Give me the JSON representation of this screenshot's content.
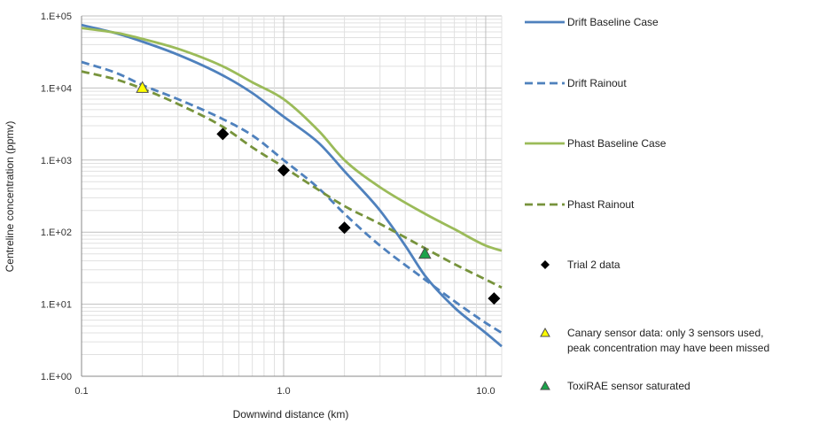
{
  "chart_data": {
    "type": "line",
    "xlabel": "Downwind distance (km)",
    "ylabel": "Centreline concentration (ppmv)",
    "xscale": "log",
    "yscale": "log",
    "xlim": [
      0.1,
      12
    ],
    "ylim": [
      1,
      100000
    ],
    "x_ticks": [
      {
        "value": 0.1,
        "label": "0.1"
      },
      {
        "value": 1,
        "label": "1.0"
      },
      {
        "value": 10,
        "label": "10.0"
      }
    ],
    "y_ticks": [
      {
        "value": 1,
        "label": "1.E+00"
      },
      {
        "value": 10,
        "label": "1.E+01"
      },
      {
        "value": 100,
        "label": "1.E+02"
      },
      {
        "value": 1000,
        "label": "1.E+03"
      },
      {
        "value": 10000,
        "label": "1.E+04"
      },
      {
        "value": 100000,
        "label": "1.E+05"
      }
    ],
    "grid": true,
    "legend_position": "right",
    "series": [
      {
        "name": "Drift Baseline Case",
        "kind": "line",
        "color": "#4f81bd",
        "dash": "solid",
        "points": [
          [
            0.1,
            75000
          ],
          [
            0.15,
            57000
          ],
          [
            0.2,
            44000
          ],
          [
            0.3,
            29000
          ],
          [
            0.5,
            15000
          ],
          [
            0.7,
            8500
          ],
          [
            1.0,
            4000
          ],
          [
            1.5,
            1700
          ],
          [
            2.0,
            700
          ],
          [
            3.0,
            200
          ],
          [
            4.0,
            65
          ],
          [
            5.0,
            25
          ],
          [
            7.0,
            9
          ],
          [
            10.0,
            4
          ],
          [
            12.0,
            2.6
          ]
        ]
      },
      {
        "name": "Drift Rainout",
        "kind": "line",
        "color": "#4f81bd",
        "dash": "dashed",
        "points": [
          [
            0.1,
            23000
          ],
          [
            0.15,
            16000
          ],
          [
            0.2,
            11000
          ],
          [
            0.3,
            7000
          ],
          [
            0.5,
            3700
          ],
          [
            0.7,
            2200
          ],
          [
            1.0,
            1000
          ],
          [
            1.5,
            400
          ],
          [
            2.0,
            180
          ],
          [
            3.0,
            65
          ],
          [
            5.0,
            22
          ],
          [
            7.0,
            11
          ],
          [
            10.0,
            5.5
          ],
          [
            12.0,
            4
          ]
        ]
      },
      {
        "name": "Phast Baseline Case",
        "kind": "line",
        "color": "#9bbb59",
        "dash": "solid",
        "points": [
          [
            0.1,
            68000
          ],
          [
            0.15,
            58000
          ],
          [
            0.2,
            48000
          ],
          [
            0.3,
            35000
          ],
          [
            0.5,
            20000
          ],
          [
            0.7,
            12000
          ],
          [
            1.0,
            7000
          ],
          [
            1.5,
            2500
          ],
          [
            2.0,
            1000
          ],
          [
            3.0,
            420
          ],
          [
            5.0,
            180
          ],
          [
            7.0,
            110
          ],
          [
            10.0,
            65
          ],
          [
            12.0,
            55
          ]
        ]
      },
      {
        "name": "Phast Rainout",
        "kind": "line",
        "color": "#77933c",
        "dash": "dashed",
        "points": [
          [
            0.1,
            17000
          ],
          [
            0.15,
            13000
          ],
          [
            0.2,
            9800
          ],
          [
            0.3,
            6000
          ],
          [
            0.5,
            2900
          ],
          [
            0.7,
            1500
          ],
          [
            1.0,
            800
          ],
          [
            1.5,
            380
          ],
          [
            2.0,
            230
          ],
          [
            3.0,
            130
          ],
          [
            5.0,
            60
          ],
          [
            7.0,
            36
          ],
          [
            10.0,
            22
          ],
          [
            12.0,
            17
          ]
        ]
      },
      {
        "name": "Trial 2 data",
        "kind": "marker",
        "marker": "diamond",
        "color": "#000000",
        "points": [
          [
            0.5,
            2300
          ],
          [
            1.0,
            720
          ],
          [
            2.0,
            115
          ],
          [
            11.0,
            12
          ]
        ]
      },
      {
        "name": "Canary sensor data: only 3 sensors used,",
        "name_line2": "peak concentration may have been missed",
        "kind": "marker",
        "marker": "triangle",
        "color": "#ffff00",
        "points": [
          [
            0.2,
            10000
          ]
        ]
      },
      {
        "name": "ToxiRAE sensor saturated",
        "kind": "marker",
        "marker": "triangle",
        "color": "#1aa34a",
        "points": [
          [
            5.0,
            50
          ]
        ]
      }
    ]
  }
}
